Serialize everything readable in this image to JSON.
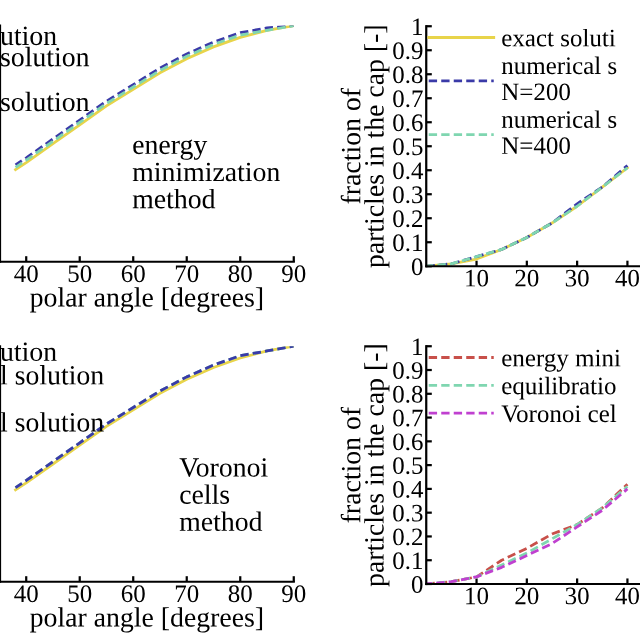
{
  "chart_data": [
    {
      "type": "line",
      "xlabel": "polar angle [degrees]",
      "x": [
        38,
        40,
        45,
        50,
        55,
        60,
        65,
        70,
        75,
        80,
        85,
        90
      ],
      "xlim": [
        35.1,
        90
      ],
      "xticks": [
        40,
        50,
        60,
        70,
        80,
        90
      ],
      "ylim": [
        0,
        1
      ],
      "line_style": "solid",
      "series": [
        {
          "color": "#e8d44a",
          "values": [
            0.39,
            0.42,
            0.5,
            0.58,
            0.66,
            0.73,
            0.8,
            0.86,
            0.91,
            0.95,
            0.98,
            1.0
          ]
        },
        {
          "color": "#3a3aa8",
          "line_style": "dashed",
          "values": [
            0.41,
            0.44,
            0.52,
            0.6,
            0.68,
            0.75,
            0.82,
            0.88,
            0.93,
            0.97,
            0.99,
            1.0
          ]
        },
        {
          "color": "#7fd6b0",
          "line_style": "dashed",
          "values": [
            0.4,
            0.43,
            0.51,
            0.59,
            0.67,
            0.74,
            0.81,
            0.87,
            0.92,
            0.96,
            0.98,
            1.0
          ]
        }
      ],
      "annotations": [
        "ution",
        "solution",
        "solution",
        "energy\nminimization\nmethod"
      ]
    },
    {
      "type": "line",
      "ylabel": "fraction of\nparticles in the cap [-]",
      "x": [
        0,
        5,
        10,
        15,
        20,
        25,
        30,
        35,
        40
      ],
      "xlim": [
        0,
        42.5
      ],
      "xticks": [
        10,
        20,
        30,
        40
      ],
      "ylim": [
        0,
        1
      ],
      "yticks": [
        0,
        0.1,
        0.2,
        0.3,
        0.4,
        0.5,
        0.6,
        0.7,
        0.8,
        0.9,
        1
      ],
      "legend": "top left",
      "line_style": "solid",
      "series": [
        {
          "name": "exact soluti",
          "color": "#e8d44a",
          "values": [
            0,
            0.01,
            0.03,
            0.07,
            0.12,
            0.18,
            0.25,
            0.33,
            0.41
          ]
        },
        {
          "name": "numerical s\nN=200",
          "color": "#3a3aa8",
          "line_style": "dashed",
          "values": [
            0,
            0.01,
            0.04,
            0.07,
            0.12,
            0.18,
            0.26,
            0.33,
            0.42
          ]
        },
        {
          "name": "numerical s\nN=400",
          "color": "#7fd6b0",
          "line_style": "dashed",
          "values": [
            0,
            0.01,
            0.04,
            0.07,
            0.12,
            0.18,
            0.25,
            0.33,
            0.41
          ]
        }
      ]
    },
    {
      "type": "line",
      "xlabel": "polar angle [degrees]",
      "x": [
        38,
        40,
        45,
        50,
        55,
        60,
        65,
        70,
        75,
        80,
        85,
        90
      ],
      "xlim": [
        35.1,
        90
      ],
      "xticks": [
        40,
        50,
        60,
        70,
        80,
        90
      ],
      "ylim": [
        0,
        1
      ],
      "line_style": "solid",
      "series": [
        {
          "color": "#e8d44a",
          "values": [
            0.39,
            0.42,
            0.5,
            0.58,
            0.66,
            0.73,
            0.8,
            0.86,
            0.91,
            0.95,
            0.98,
            1.0
          ]
        },
        {
          "color": "#7fd6b0",
          "line_style": "dashed",
          "values": [
            0.4,
            0.43,
            0.51,
            0.59,
            0.67,
            0.74,
            0.81,
            0.87,
            0.92,
            0.96,
            0.98,
            1.0
          ]
        },
        {
          "color": "#3a3aa8",
          "line_style": "dashed",
          "values": [
            0.4,
            0.43,
            0.51,
            0.59,
            0.67,
            0.74,
            0.81,
            0.87,
            0.92,
            0.96,
            0.98,
            1.0
          ]
        }
      ],
      "annotations": [
        "ution",
        "l solution",
        "l solution",
        "Voronoi\ncells\nmethod"
      ]
    },
    {
      "type": "line",
      "ylabel": "fraction of\nparticles in the cap [-]",
      "x": [
        0,
        5,
        10,
        15,
        20,
        25,
        30,
        35,
        40
      ],
      "xlim": [
        0,
        42.5
      ],
      "xticks": [
        10,
        20,
        30,
        40
      ],
      "ylim": [
        0,
        1
      ],
      "yticks": [
        0,
        0.1,
        0.2,
        0.3,
        0.4,
        0.5,
        0.6,
        0.7,
        0.8,
        0.9,
        1
      ],
      "legend": "top left",
      "line_style": "dashed",
      "series": [
        {
          "name": "energy mini",
          "color": "#c8504a",
          "values": [
            0,
            0.01,
            0.03,
            0.1,
            0.15,
            0.21,
            0.25,
            0.32,
            0.42
          ]
        },
        {
          "name": "equilibratio",
          "color": "#7fd6b0",
          "values": [
            0,
            0.01,
            0.03,
            0.08,
            0.13,
            0.19,
            0.25,
            0.32,
            0.41
          ]
        },
        {
          "name": "Voronoi cel",
          "color": "#c040d0",
          "values": [
            0,
            0.01,
            0.03,
            0.07,
            0.12,
            0.17,
            0.24,
            0.31,
            0.4
          ]
        }
      ]
    }
  ]
}
